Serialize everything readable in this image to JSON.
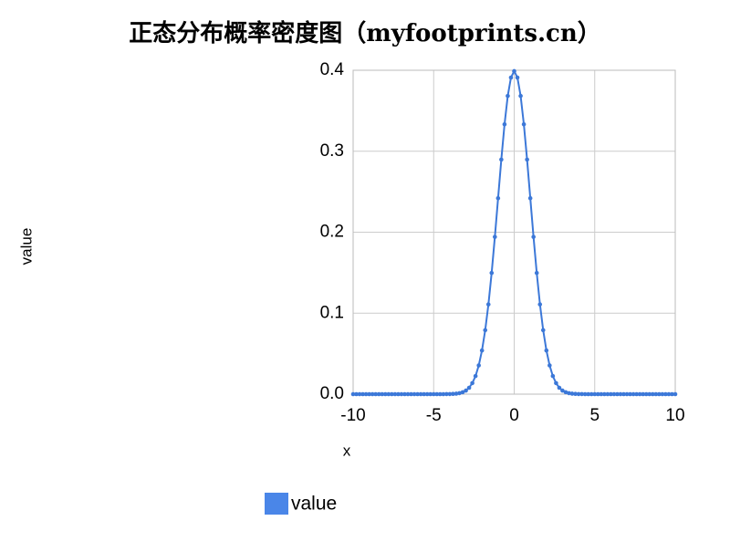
{
  "chart_data": {
    "type": "line",
    "title": "正态分布概率密度图（myfootprints.cn）",
    "x_label": "x",
    "y_label": "value",
    "x": [
      -10,
      -9.8,
      -9.6,
      -9.4,
      -9.2,
      -9,
      -8.8,
      -8.6,
      -8.4,
      -8.2,
      -8,
      -7.8,
      -7.6,
      -7.4,
      -7.2,
      -7,
      -6.8,
      -6.6,
      -6.4,
      -6.2,
      -6,
      -5.8,
      -5.6,
      -5.4,
      -5.2,
      -5,
      -4.8,
      -4.6,
      -4.4,
      -4.2,
      -4,
      -3.8,
      -3.6,
      -3.4,
      -3.2,
      -3,
      -2.8,
      -2.6,
      -2.4,
      -2.2,
      -2,
      -1.8,
      -1.6,
      -1.4,
      -1.2,
      -1,
      -0.8,
      -0.6,
      -0.4,
      -0.2,
      0,
      0.2,
      0.4,
      0.6,
      0.8,
      1,
      1.2,
      1.4,
      1.6,
      1.8,
      2,
      2.2,
      2.4,
      2.6,
      2.8,
      3,
      3.2,
      3.4,
      3.6,
      3.8,
      4,
      4.2,
      4.4,
      4.6,
      4.8,
      5,
      5.2,
      5.4,
      5.6,
      5.8,
      6,
      6.2,
      6.4,
      6.6,
      6.8,
      7,
      7.2,
      7.4,
      7.6,
      7.8,
      8,
      8.2,
      8.4,
      8.6,
      8.8,
      9,
      9.2,
      9.4,
      9.6,
      9.8,
      10
    ],
    "series": [
      {
        "name": "value",
        "color": "#3c78d8",
        "values": [
          0,
          0,
          0,
          0,
          0,
          0,
          0,
          0,
          0,
          0,
          0,
          0,
          0,
          0,
          0,
          0,
          0,
          0,
          0,
          0,
          0,
          0,
          0,
          0,
          0,
          0,
          0,
          0,
          0,
          0.0001,
          0.0001,
          0.0003,
          0.0006,
          0.0012,
          0.0024,
          0.0044,
          0.0079,
          0.0136,
          0.0224,
          0.0355,
          0.054,
          0.079,
          0.1109,
          0.1497,
          0.1942,
          0.242,
          0.2897,
          0.3332,
          0.3683,
          0.391,
          0.3989,
          0.391,
          0.3683,
          0.3332,
          0.2897,
          0.242,
          0.1942,
          0.1497,
          0.1109,
          0.079,
          0.054,
          0.0355,
          0.0224,
          0.0136,
          0.0079,
          0.0044,
          0.0024,
          0.0012,
          0.0006,
          0.0003,
          0.0001,
          0.0001,
          0,
          0,
          0,
          0,
          0,
          0,
          0,
          0,
          0,
          0,
          0,
          0,
          0,
          0,
          0,
          0,
          0,
          0,
          0,
          0,
          0,
          0,
          0,
          0,
          0,
          0,
          0,
          0,
          0
        ]
      }
    ],
    "xlim": [
      -10,
      10
    ],
    "xticks": [
      -10,
      -5,
      0,
      5,
      10
    ],
    "ylim": [
      0,
      0.4
    ],
    "yticks": [
      {
        "value": 0,
        "label": "0.0"
      },
      0.1,
      0.2,
      0.3,
      0.4
    ],
    "grid": true,
    "legend": "bottom",
    "legend_color": "#4a86e8"
  }
}
